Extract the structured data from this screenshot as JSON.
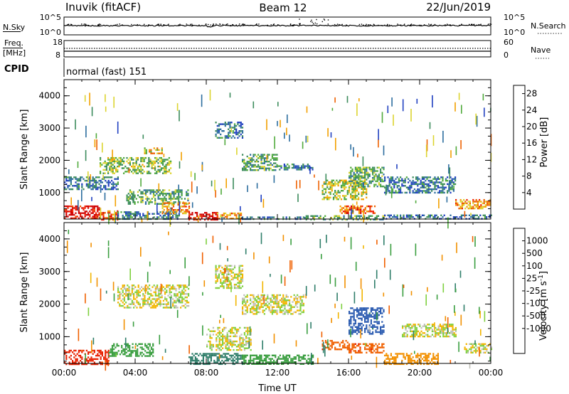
{
  "header": {
    "station": "Inuvik (fitACF)",
    "beam": "Beam 12",
    "date": "22/Jun/2019"
  },
  "top_panels": {
    "nsky_label": "N.Sky",
    "nsearch_label": "N.Search",
    "nsky_ticks": [
      "10^5",
      "10^0"
    ],
    "nsearch_ticks": [
      "10^5",
      "10^0"
    ],
    "freq_label": [
      "Freq.",
      "[MHz]"
    ],
    "freq_ticks": [
      "18",
      "8"
    ],
    "nave_label": "Nave",
    "nave_ticks": [
      "60",
      "0"
    ],
    "cpid_label": "CPID",
    "cpid_text": "normal (fast) 151"
  },
  "chart_data": [
    {
      "type": "heatmap",
      "title": "",
      "xlabel": "",
      "ylabel": "Slant Range [km]",
      "xlim": [
        "00:00",
        "24:00"
      ],
      "ylim": [
        180,
        4500
      ],
      "yticks": [
        "1000",
        "2000",
        "3000",
        "4000"
      ],
      "colorbar": {
        "label": "Power [dB]",
        "ticks": [
          "4",
          "8",
          "12",
          "16",
          "20",
          "24",
          "28"
        ],
        "colors": [
          "#0000ff",
          "#2040c0",
          "#2c6d9e",
          "#3c8c5c",
          "#50aa3c",
          "#dcd430",
          "#f2a000",
          "#ee6000",
          "#f02000",
          "#d00000"
        ]
      },
      "clusters": [
        {
          "t": [
            0.0,
            2.0
          ],
          "r": [
            180,
            600
          ],
          "value": 28
        },
        {
          "t": [
            2.0,
            3.0
          ],
          "r": [
            180,
            450
          ],
          "value": 24
        },
        {
          "t": [
            3.0,
            6.5
          ],
          "r": [
            180,
            420
          ],
          "value": 8
        },
        {
          "t": [
            7.0,
            8.6
          ],
          "r": [
            180,
            400
          ],
          "value": 28
        },
        {
          "t": [
            8.6,
            10.0
          ],
          "r": [
            180,
            380
          ],
          "value": 20
        },
        {
          "t": [
            10.0,
            13.5
          ],
          "r": [
            180,
            260
          ],
          "value": 8
        },
        {
          "t": [
            13.5,
            18.0
          ],
          "r": [
            180,
            300
          ],
          "value": 12
        },
        {
          "t": [
            18.0,
            24.0
          ],
          "r": [
            180,
            320
          ],
          "value": 8
        },
        {
          "t": [
            0.0,
            3.0
          ],
          "r": [
            1100,
            1500
          ],
          "value": 8
        },
        {
          "t": [
            3.5,
            7.0
          ],
          "r": [
            650,
            1100
          ],
          "value": 12
        },
        {
          "t": [
            5.5,
            7.0
          ],
          "r": [
            350,
            700
          ],
          "value": 20
        },
        {
          "t": [
            2.0,
            6.0
          ],
          "r": [
            1600,
            2100
          ],
          "value": 14
        },
        {
          "t": [
            4.5,
            5.5
          ],
          "r": [
            2200,
            2400
          ],
          "value": 18
        },
        {
          "t": [
            8.5,
            10.0
          ],
          "r": [
            2700,
            3200
          ],
          "value": 8
        },
        {
          "t": [
            10.0,
            12.0
          ],
          "r": [
            1700,
            2200
          ],
          "value": 12
        },
        {
          "t": [
            12.0,
            14.0
          ],
          "r": [
            1700,
            1900
          ],
          "value": 8
        },
        {
          "t": [
            14.5,
            17.0
          ],
          "r": [
            800,
            1400
          ],
          "value": 16
        },
        {
          "t": [
            16.0,
            18.0
          ],
          "r": [
            1200,
            1800
          ],
          "value": 12
        },
        {
          "t": [
            18.0,
            22.0
          ],
          "r": [
            1000,
            1500
          ],
          "value": 8
        },
        {
          "t": [
            15.5,
            17.5
          ],
          "r": [
            350,
            600
          ],
          "value": 24
        },
        {
          "t": [
            22.0,
            24.0
          ],
          "r": [
            500,
            800
          ],
          "value": 20
        }
      ]
    },
    {
      "type": "heatmap",
      "title": "",
      "xlabel": "Time UT",
      "ylabel": "Slant Range [km]",
      "xlim": [
        "00:00",
        "24:00"
      ],
      "ylim": [
        180,
        4500
      ],
      "xticks": [
        "00:00",
        "04:00",
        "08:00",
        "12:00",
        "16:00",
        "20:00",
        "00:00"
      ],
      "yticks": [
        "1000",
        "2000",
        "3000",
        "4000"
      ],
      "colorbar": {
        "label": "Velocity [m s^-1]",
        "ticks": [
          "1000",
          "500",
          "100",
          "25",
          "-25",
          "-100",
          "-500",
          "-1000"
        ],
        "colors": [
          "#1c3cc8",
          "#2a5ab0",
          "#2f7e6a",
          "#3a9e40",
          "#7fd040",
          "#c0c0b8",
          "#f2b500",
          "#f29000",
          "#f06000",
          "#e82000"
        ]
      },
      "clusters": [
        {
          "t": [
            0.0,
            2.5
          ],
          "r": [
            180,
            600
          ],
          "value": -700
        },
        {
          "t": [
            2.5,
            5.0
          ],
          "r": [
            400,
            800
          ],
          "value": 50
        },
        {
          "t": [
            3.0,
            7.0
          ],
          "r": [
            1900,
            2600
          ],
          "value": 0
        },
        {
          "t": [
            7.0,
            10.0
          ],
          "r": [
            180,
            500
          ],
          "value": 300
        },
        {
          "t": [
            8.0,
            10.5
          ],
          "r": [
            600,
            1300
          ],
          "value": 0
        },
        {
          "t": [
            8.5,
            10.0
          ],
          "r": [
            2500,
            3200
          ],
          "value": 0
        },
        {
          "t": [
            10.0,
            13.5
          ],
          "r": [
            1700,
            2300
          ],
          "value": 0
        },
        {
          "t": [
            10.0,
            14.0
          ],
          "r": [
            180,
            450
          ],
          "value": 60
        },
        {
          "t": [
            14.5,
            16.0
          ],
          "r": [
            600,
            900
          ],
          "value": -400
        },
        {
          "t": [
            16.0,
            18.0
          ],
          "r": [
            1100,
            1900
          ],
          "value": 700
        },
        {
          "t": [
            16.0,
            18.0
          ],
          "r": [
            500,
            800
          ],
          "value": -400
        },
        {
          "t": [
            18.0,
            21.0
          ],
          "r": [
            180,
            500
          ],
          "value": -60
        },
        {
          "t": [
            19.0,
            22.0
          ],
          "r": [
            1000,
            1400
          ],
          "value": 0
        },
        {
          "t": [
            22.5,
            24.0
          ],
          "r": [
            500,
            800
          ],
          "value": 0
        }
      ]
    }
  ]
}
